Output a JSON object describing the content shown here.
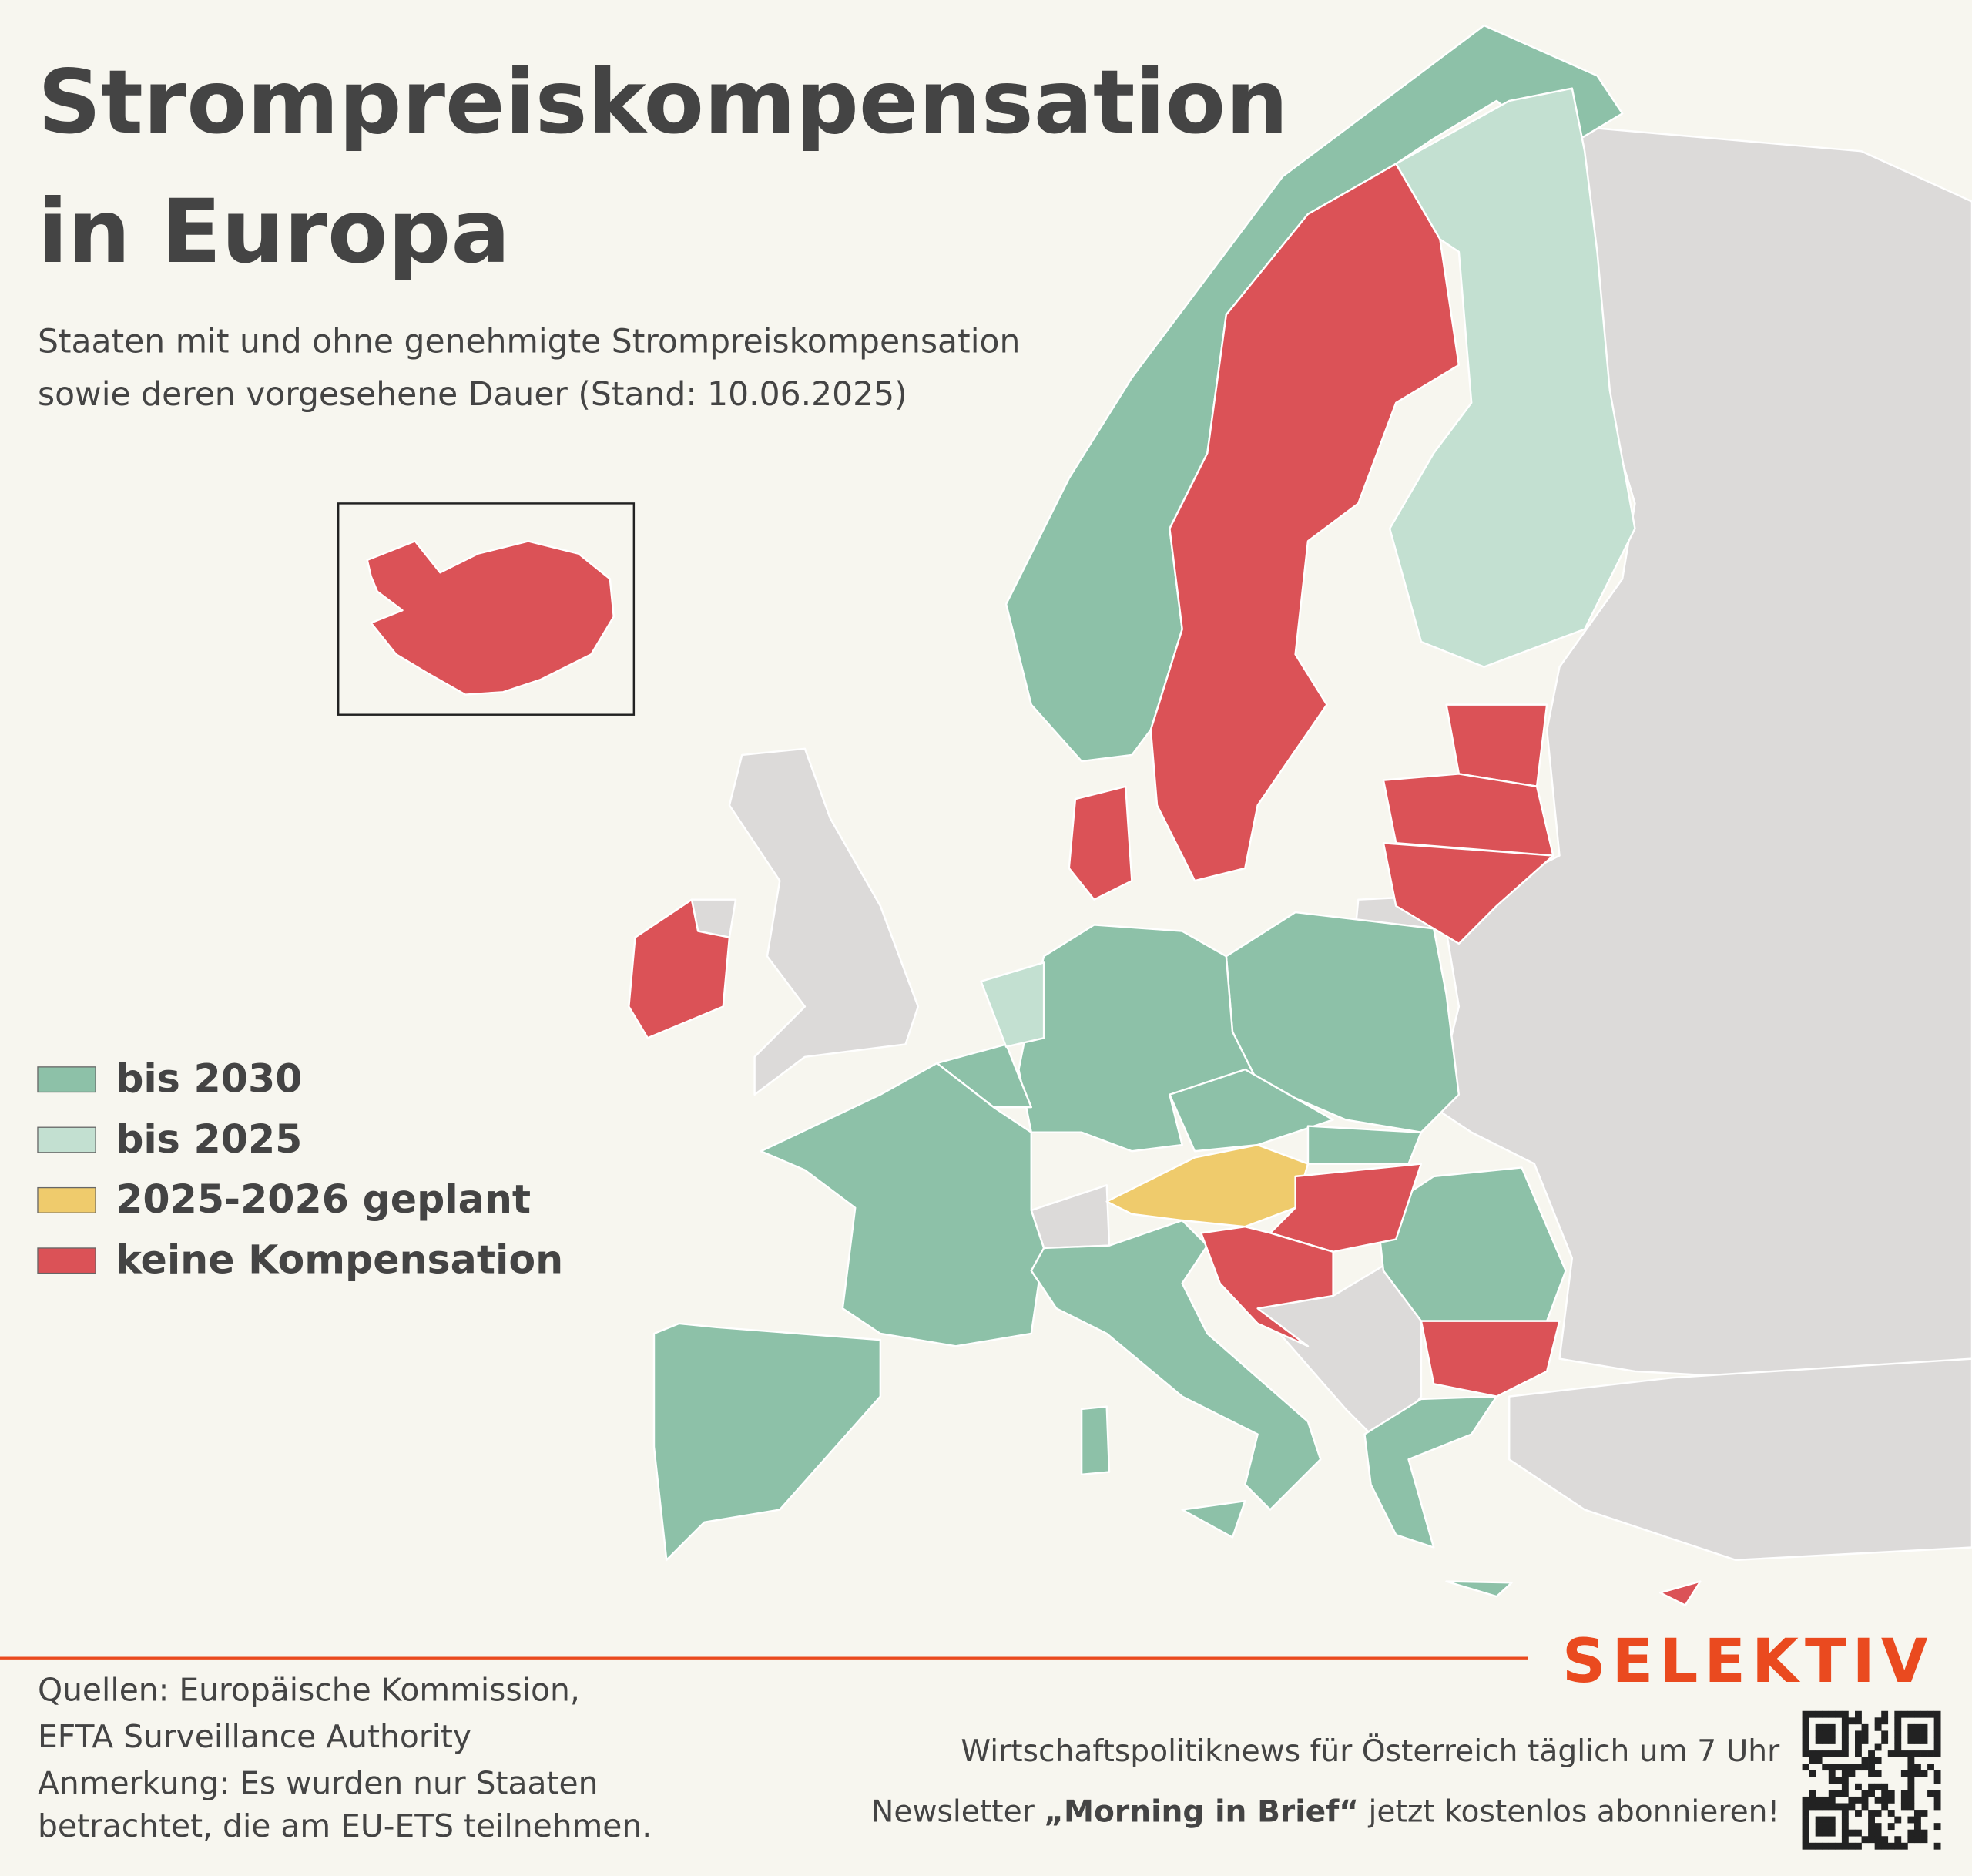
{
  "header": {
    "title": [
      "Strompreiskompensation",
      "in Europa"
    ],
    "subtitle": [
      "Staaten mit und ohne genehmigte Strompreiskompensation",
      "sowie deren vorgesehene Dauer (Stand: 10.06.2025)"
    ]
  },
  "legend": [
    {
      "label": "bis 2030",
      "color": "#8dc1a8"
    },
    {
      "label": "bis 2025",
      "color": "#c3e0d1"
    },
    {
      "label": "2025-2026 geplant",
      "color": "#efcb6c"
    },
    {
      "label": "keine Kompensation",
      "color": "#db5257"
    }
  ],
  "footer": {
    "sources": [
      "Quellen: Europäische Kommission,",
      "EFTA Surveillance Authority",
      "Anmerkung: Es wurden nur Staaten",
      "betrachtet, die am EU-ETS teilnehmen."
    ],
    "brand": "SELEKTIV",
    "promo_line1": "Wirtschaftspolitiknews für Österreich täglich um 7 Uhr",
    "promo_line2": {
      "before": "Newsletter ",
      "bold": "„Morning in Brief“",
      "after": " jetzt kostenlos abonnieren!"
    }
  }
}
